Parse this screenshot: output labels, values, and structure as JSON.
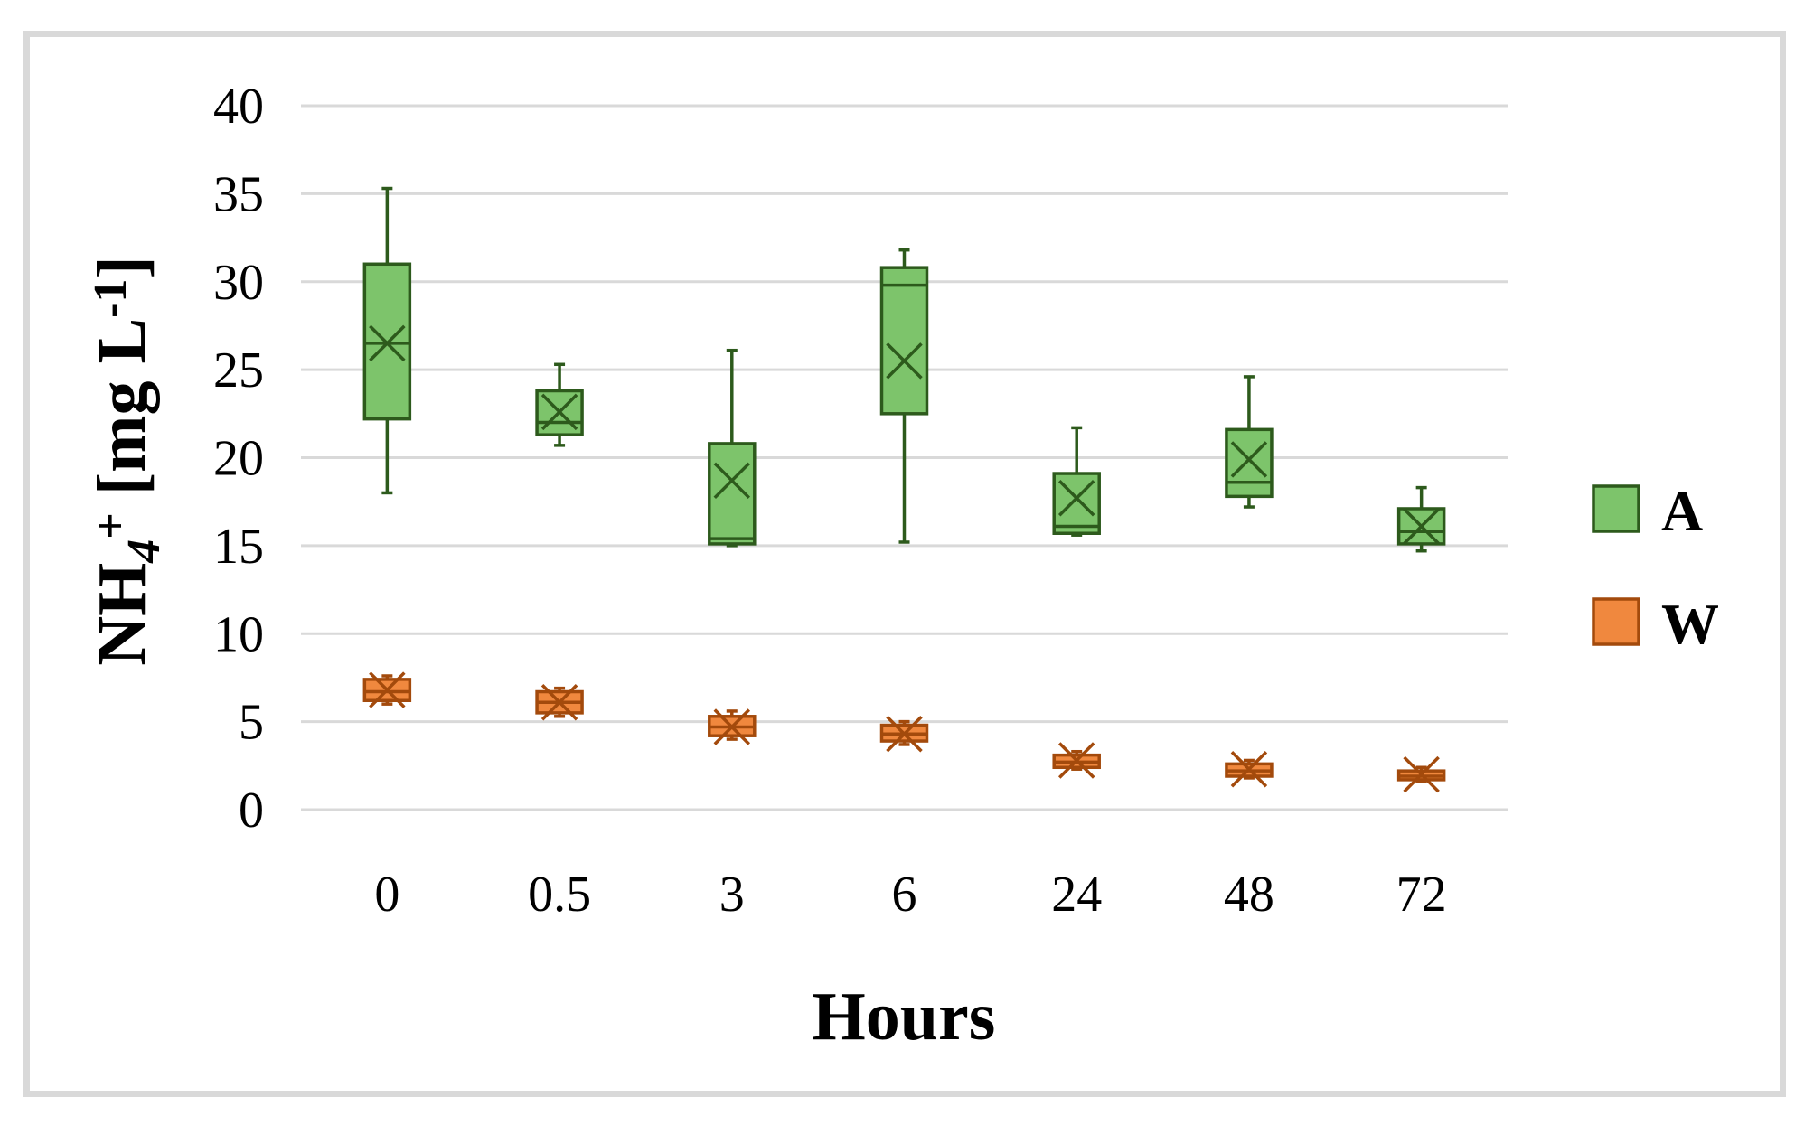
{
  "chart_data": {
    "type": "box",
    "xlabel": "Hours",
    "ylabel": {
      "parts": [
        {
          "text": "NH",
          "style": "normal"
        },
        {
          "text": "4",
          "style": "sub"
        },
        {
          "text": "+",
          "style": "sup"
        },
        {
          "text": " [mg L",
          "style": "normal"
        },
        {
          "text": "-1",
          "style": "sup"
        },
        {
          "text": "]",
          "style": "normal"
        }
      ]
    },
    "categories": [
      "0",
      "0.5",
      "3",
      "6",
      "24",
      "48",
      "72"
    ],
    "ylim": [
      0,
      40
    ],
    "yticks": [
      0,
      5,
      10,
      15,
      20,
      25,
      30,
      35,
      40
    ],
    "grid": true,
    "legend_position": "right",
    "series": [
      {
        "name": "A",
        "fill": "#7dc46b",
        "stroke": "#2d5a1c",
        "boxes": [
          {
            "min": 18.0,
            "q1": 22.2,
            "median": 26.5,
            "q3": 31.0,
            "max": 35.3,
            "mean": 26.5
          },
          {
            "min": 20.7,
            "q1": 21.3,
            "median": 22.0,
            "q3": 23.8,
            "max": 25.3,
            "mean": 22.6
          },
          {
            "min": 15.0,
            "q1": 15.1,
            "median": 15.4,
            "q3": 20.8,
            "max": 26.1,
            "mean": 18.7
          },
          {
            "min": 15.2,
            "q1": 22.5,
            "median": 29.8,
            "q3": 30.8,
            "max": 31.8,
            "mean": 25.5
          },
          {
            "min": 15.6,
            "q1": 15.7,
            "median": 16.1,
            "q3": 19.1,
            "max": 21.7,
            "mean": 17.7
          },
          {
            "min": 17.2,
            "q1": 17.8,
            "median": 18.6,
            "q3": 21.6,
            "max": 24.6,
            "mean": 19.9
          },
          {
            "min": 14.7,
            "q1": 15.1,
            "median": 15.8,
            "q3": 17.1,
            "max": 18.3,
            "mean": 16.1
          }
        ]
      },
      {
        "name": "W",
        "fill": "#f0883e",
        "stroke": "#a34a0c",
        "boxes": [
          {
            "min": 6.0,
            "q1": 6.2,
            "median": 6.7,
            "q3": 7.4,
            "max": 7.6,
            "mean": 6.8
          },
          {
            "min": 5.3,
            "q1": 5.5,
            "median": 6.1,
            "q3": 6.7,
            "max": 6.9,
            "mean": 6.1
          },
          {
            "min": 4.0,
            "q1": 4.2,
            "median": 4.7,
            "q3": 5.3,
            "max": 5.6,
            "mean": 4.7
          },
          {
            "min": 3.7,
            "q1": 3.9,
            "median": 4.3,
            "q3": 4.8,
            "max": 5.0,
            "mean": 4.3
          },
          {
            "min": 2.3,
            "q1": 2.4,
            "median": 2.7,
            "q3": 3.1,
            "max": 3.3,
            "mean": 2.8
          },
          {
            "min": 1.8,
            "q1": 1.9,
            "median": 2.2,
            "q3": 2.6,
            "max": 2.8,
            "mean": 2.3
          },
          {
            "min": 1.6,
            "q1": 1.7,
            "median": 1.9,
            "q3": 2.2,
            "max": 2.4,
            "mean": 2.0
          }
        ]
      }
    ]
  }
}
